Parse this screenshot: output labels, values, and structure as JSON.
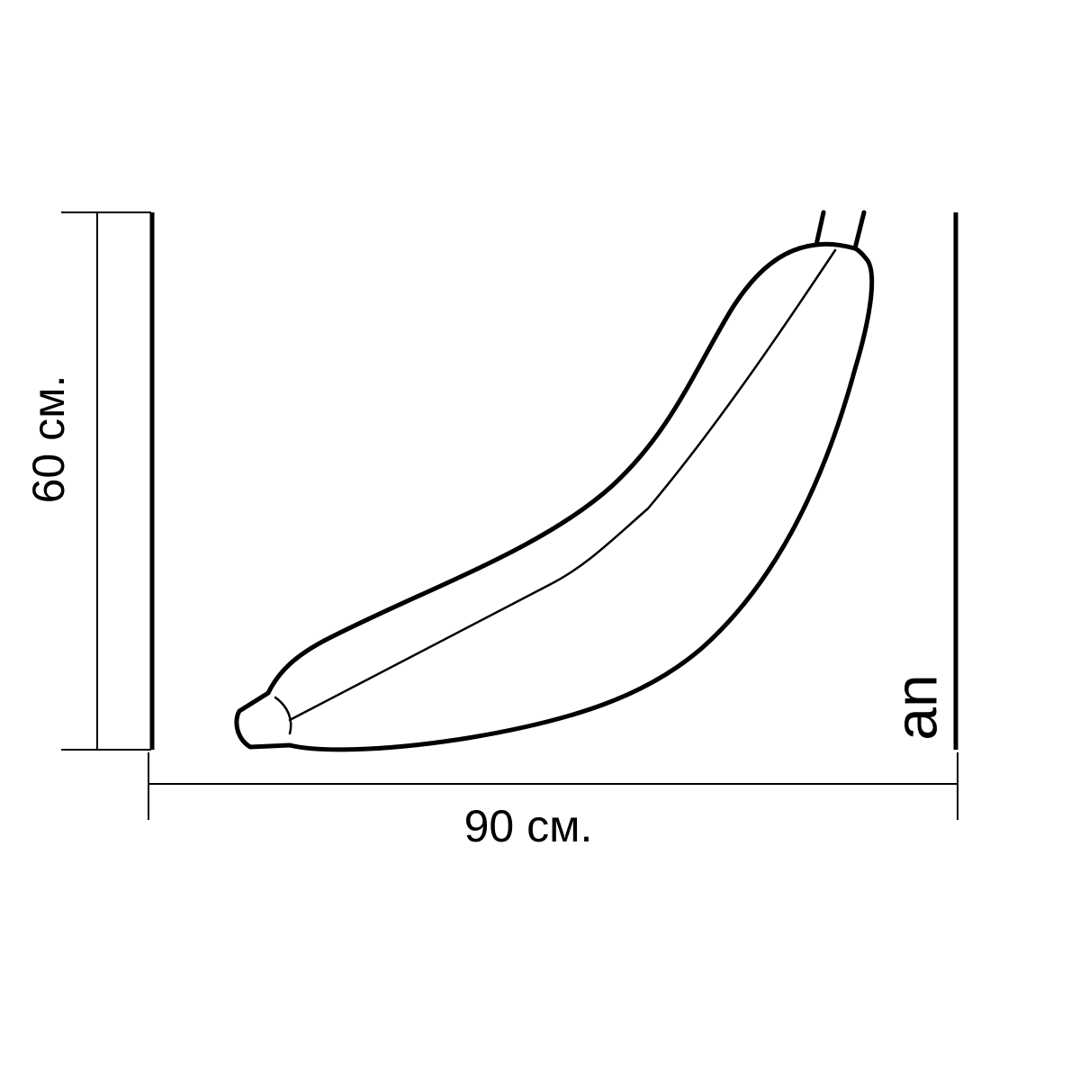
{
  "dimensions": {
    "height_label": "60 см.",
    "width_label": "90 см."
  },
  "logo": {
    "text": "an"
  },
  "colors": {
    "stroke": "#000000",
    "background": "#ffffff"
  },
  "illustration": {
    "subject": "banana-outline"
  }
}
